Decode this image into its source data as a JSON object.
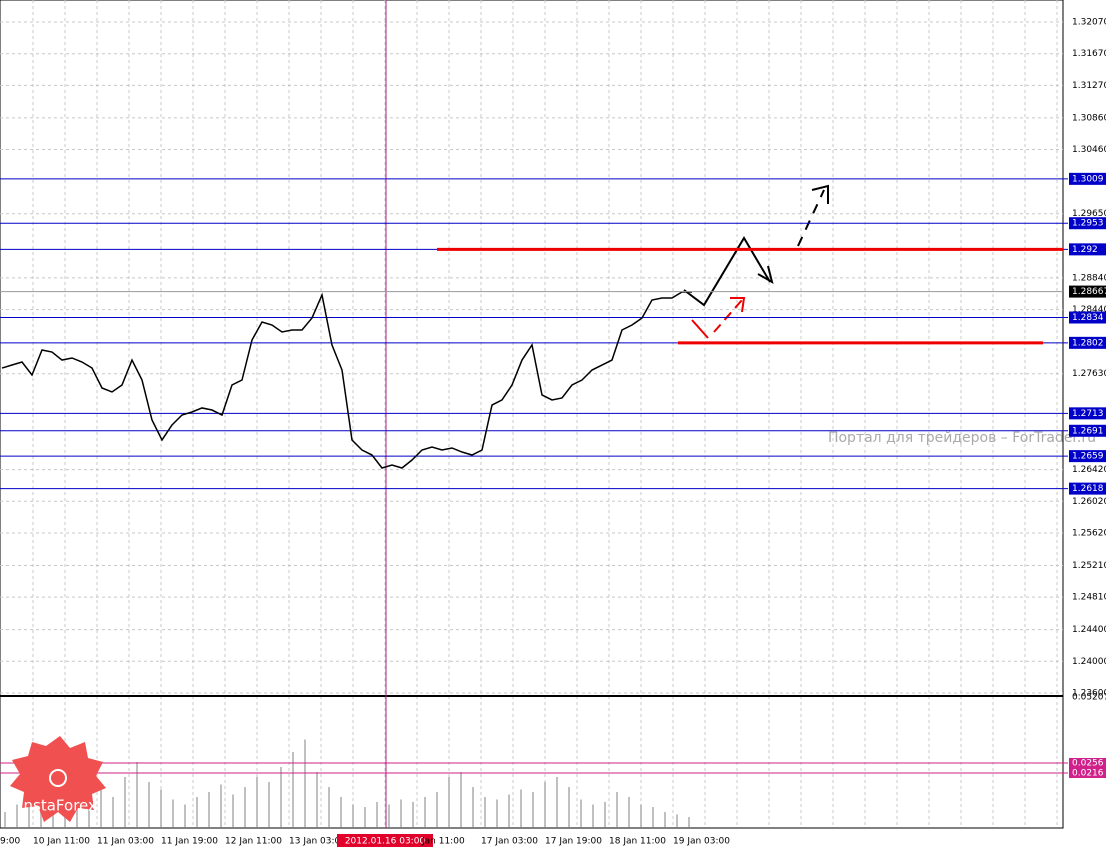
{
  "chart_data": [
    {
      "type": "line",
      "color": "#000000",
      "values": [
        1.27702,
        1.2774,
        1.27778,
        1.27614,
        1.2793,
        1.27904,
        1.27803,
        1.27829,
        1.27778,
        1.27702,
        1.2745,
        1.274,
        1.27488,
        1.27803,
        1.27551,
        1.27046,
        1.26794,
        1.26983,
        1.27109,
        1.27147,
        1.27198,
        1.27172,
        1.27109,
        1.27488,
        1.27551,
        1.28056,
        1.28283,
        1.28245,
        1.28157,
        1.28182,
        1.28182,
        1.28334,
        1.28624,
        1.27993,
        1.27677,
        1.26794,
        1.26667,
        1.26604,
        1.2644,
        1.26478,
        1.2644,
        1.26541,
        1.26667,
        1.26705,
        1.26667,
        1.26693,
        1.26642,
        1.26604,
        1.26667,
        1.27235,
        1.27299,
        1.27488,
        1.27803,
        1.27993,
        1.27362,
        1.27299,
        1.27324,
        1.27488,
        1.27551,
        1.27677,
        1.2774,
        1.27803,
        1.28182,
        1.28245,
        1.28334,
        1.28561,
        1.28586,
        1.28586,
        1.28662,
        1.28662
      ],
      "x_labels": [
        "9:00",
        "10 Jan 11:00",
        "11 Jan 03:00",
        "11 Jan 19:00",
        "12 Jan 11:00",
        "13 Jan 03:00",
        "2012.01.16 03:00",
        "Jan 11:00",
        "17 Jan 03:00",
        "17 Jan 19:00",
        "18 Jan 11:00",
        "19 Jan 03:00"
      ],
      "ylim": [
        1.236,
        1.3207
      ],
      "yticks": [
        {
          "value": 1.3207,
          "label": "1.32070"
        },
        {
          "value": 1.3167,
          "label": "1.31670"
        },
        {
          "value": 1.3127,
          "label": "1.31270"
        },
        {
          "value": 1.3086,
          "label": "1.30860"
        },
        {
          "value": 1.3046,
          "label": "1.30460"
        },
        {
          "value": 1.2965,
          "label": "1.29650"
        },
        {
          "value": 1.2884,
          "label": "1.28840"
        },
        {
          "value": 1.2844,
          "label": "1.28440"
        },
        {
          "value": 1.2763,
          "label": "1.27630"
        },
        {
          "value": 1.2642,
          "label": "1.26420"
        },
        {
          "value": 1.2602,
          "label": "1.26020"
        },
        {
          "value": 1.2562,
          "label": "1.25620"
        },
        {
          "value": 1.2521,
          "label": "1.25210"
        },
        {
          "value": 1.2481,
          "label": "1.24810"
        },
        {
          "value": 1.244,
          "label": "1.24400"
        },
        {
          "value": 1.24,
          "label": "1.24000"
        },
        {
          "value": 1.236,
          "label": "1.23600"
        }
      ],
      "levels": [
        1.3009,
        1.2953,
        1.292,
        1.2834,
        1.2802,
        1.2713,
        1.2691,
        1.2659,
        1.2618
      ],
      "current_price": 1.28667,
      "watermark": "Портал для трейдеров – ForTrader.ru",
      "logo": "InstaForex"
    },
    {
      "type": "bar",
      "color": "#c0c0c0",
      "values": [
        0.006,
        0.009,
        0.012,
        0.008,
        0.011,
        0.014,
        0.01,
        0.013,
        0.015,
        0.012,
        0.02,
        0.026,
        0.018,
        0.015,
        0.011,
        0.009,
        0.012,
        0.014,
        0.017,
        0.013,
        0.016,
        0.02,
        0.018,
        0.024,
        0.03,
        0.035,
        0.022,
        0.016,
        0.012,
        0.009,
        0.008,
        0.01,
        0.009,
        0.011,
        0.01,
        0.012,
        0.014,
        0.02,
        0.022,
        0.016,
        0.012,
        0.011,
        0.013,
        0.015,
        0.014,
        0.018,
        0.02,
        0.016,
        0.011,
        0.009,
        0.01,
        0.014,
        0.012,
        0.009,
        0.008,
        0.006,
        0.005,
        0.004
      ],
      "ylim": [
        0,
        0.0532
      ],
      "yticks": [
        0.05207
      ],
      "levels": [
        0.0256,
        0.0216
      ]
    }
  ]
}
